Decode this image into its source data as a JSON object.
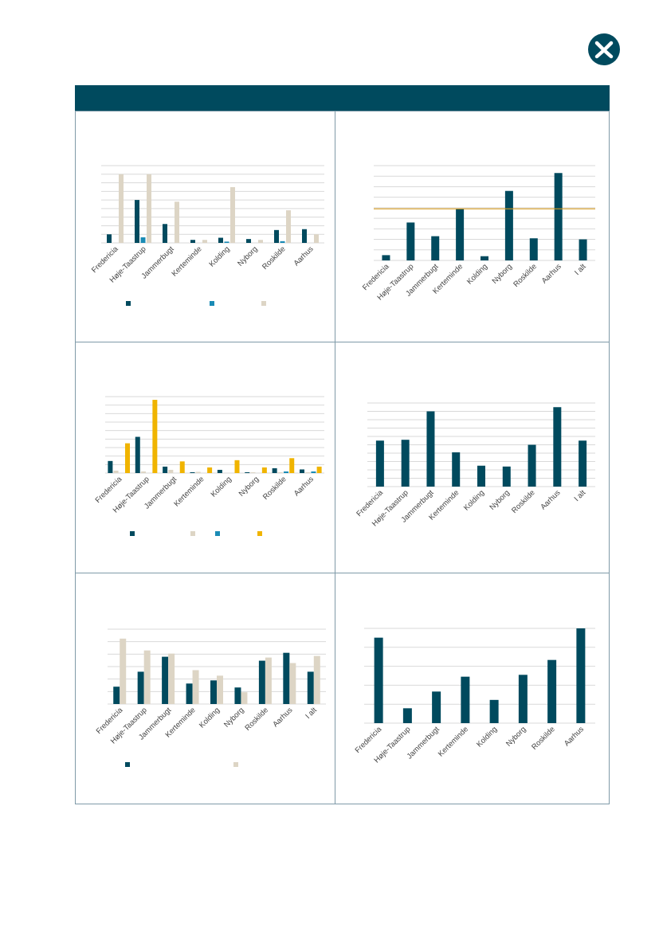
{
  "colors": {
    "navy": "#004a5e",
    "blue": "#1a8bb5",
    "beige": "#ddd5c5",
    "yellow": "#f0b400",
    "orange": "#d69a1e",
    "grid": "#d9d9d9"
  },
  "logo": {
    "icon": "logo-mark-icon"
  },
  "chart_data": [
    {
      "type": "bar",
      "categories": [
        "Fredericia",
        "Høje-Taastrup",
        "Jammerbugt",
        "Kerteminde",
        "Kolding",
        "Nyborg",
        "Roskilde",
        "Aarhus"
      ],
      "series": [
        {
          "values": [
            1.0,
            5.0,
            2.2,
            0.35,
            0.6,
            0.45,
            1.5,
            1.6
          ]
        },
        {
          "values": [
            0,
            0.65,
            0,
            0,
            0.15,
            0,
            0.2,
            0
          ]
        },
        {
          "values": [
            8.0,
            8.0,
            4.8,
            0.35,
            6.5,
            0.35,
            3.8,
            1.0
          ]
        }
      ],
      "ylim": [
        0,
        9
      ],
      "grid": true,
      "legend": "bottom",
      "yticks": 9
    },
    {
      "type": "bar",
      "categories": [
        "Fredericia",
        "Høje-Taastrup",
        "Jammerbugt",
        "Kerteminde",
        "Kolding",
        "Nyborg",
        "Roskilde",
        "Aarhus",
        "I alt"
      ],
      "series": [
        {
          "values": [
            0.5,
            3.6,
            2.3,
            4.9,
            0.4,
            6.6,
            2.1,
            8.3,
            2.0
          ]
        }
      ],
      "reference_line": 4.9,
      "ylim": [
        0,
        9
      ],
      "grid": true,
      "yticks": 9
    },
    {
      "type": "bar",
      "categories": [
        "Fredericia",
        "Høje-Taastrup",
        "Jammerbugt",
        "Kerteminde",
        "Kolding",
        "Nyborg",
        "Roskilde",
        "Aarhus"
      ],
      "series": [
        {
          "values": [
            1.5,
            4.5,
            0.8,
            0.1,
            0.4,
            0.1,
            0.6,
            0.45
          ]
        },
        {
          "values": [
            0.3,
            0.2,
            0.4,
            0.15,
            0,
            0.1,
            0.1,
            0.1
          ]
        },
        {
          "values": [
            0,
            0,
            0,
            0,
            0,
            0,
            0.2,
            0.2
          ]
        },
        {
          "values": [
            3.7,
            9.1,
            1.45,
            0.7,
            1.6,
            0.7,
            1.85,
            0.8
          ]
        }
      ],
      "ylim": [
        0,
        9.5
      ],
      "grid": true,
      "legend": "bottom",
      "yticks": 9
    },
    {
      "type": "bar",
      "categories": [
        "Fredericia",
        "Høje-Taastrup",
        "Jammerbugt",
        "Kerteminde",
        "Kolding",
        "Nyborg",
        "Roskilde",
        "Aarhus",
        "I alt"
      ],
      "series": [
        {
          "values": [
            5.5,
            5.6,
            9.0,
            4.1,
            2.5,
            2.4,
            5.0,
            9.5,
            5.5
          ]
        }
      ],
      "ylim": [
        0,
        10
      ],
      "grid": true,
      "yticks": 10
    },
    {
      "type": "bar",
      "categories": [
        "Fredericia",
        "Høje-Taastrup",
        "Jammerbugt",
        "Kerteminde",
        "Kolding",
        "Nyborg",
        "Roskilde",
        "Aarhus",
        "I alt"
      ],
      "series": [
        {
          "values": [
            2.2,
            4.1,
            6.0,
            2.6,
            3.0,
            2.1,
            5.5,
            6.5,
            4.1
          ]
        },
        {
          "values": [
            8.3,
            6.8,
            6.4,
            4.3,
            3.6,
            1.5,
            5.9,
            5.2,
            6.1
          ]
        }
      ],
      "ylim": [
        0,
        9.5
      ],
      "grid": true,
      "legend": "bottom",
      "yticks": 6
    },
    {
      "type": "bar",
      "categories": [
        "Fredericia",
        "Høje-Taastrup",
        "Jammerbugt",
        "Kerteminde",
        "Kolding",
        "Nyborg",
        "Roskilde",
        "Aarhus"
      ],
      "series": [
        {
          "values": [
            4.6,
            0.8,
            1.7,
            2.5,
            1.25,
            2.6,
            3.4,
            5.1
          ]
        }
      ],
      "ylim": [
        0,
        5.1
      ],
      "grid": true,
      "yticks": 5
    }
  ]
}
